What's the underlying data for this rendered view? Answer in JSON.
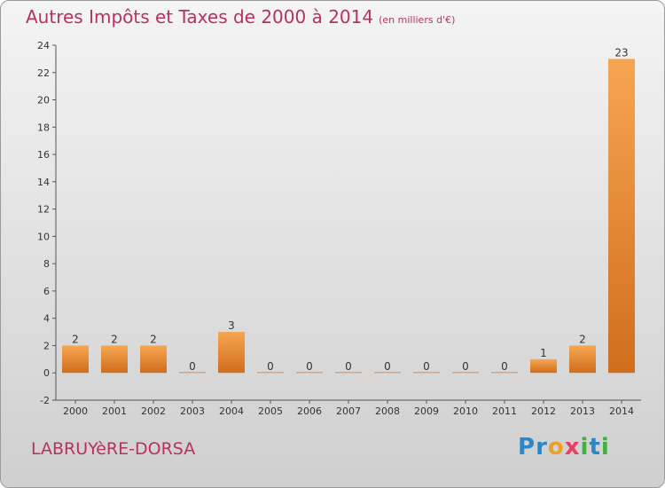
{
  "title": "Autres Impôts et Taxes de 2000 à 2014",
  "unit": "(en milliers d'€)",
  "commune": "LABRUYèRE-DORSA",
  "logo": {
    "letters": [
      {
        "ch": "P",
        "color": "#2e86c8"
      },
      {
        "ch": "r",
        "color": "#2e86c8"
      },
      {
        "ch": "o",
        "color": "#f0a020"
      },
      {
        "ch": "x",
        "color": "#e84060"
      },
      {
        "ch": "i",
        "color": "#40b040"
      },
      {
        "ch": "t",
        "color": "#2e86c8"
      },
      {
        "ch": "i",
        "color": "#40b040"
      }
    ]
  },
  "chart_data": {
    "type": "bar",
    "categories": [
      "2000",
      "2001",
      "2002",
      "2003",
      "2004",
      "2005",
      "2006",
      "2007",
      "2008",
      "2009",
      "2010",
      "2011",
      "2012",
      "2013",
      "2014"
    ],
    "values": [
      2,
      2,
      2,
      0,
      3,
      0,
      0,
      0,
      0,
      0,
      0,
      0,
      1,
      2,
      23
    ],
    "data_labels": [
      "2",
      "2",
      "2",
      "0",
      "3",
      "0",
      "0",
      "0",
      "0",
      "0",
      "0",
      "0",
      "1",
      "2",
      "23"
    ],
    "ylim": [
      -2,
      24
    ],
    "yticks": [
      -2,
      0,
      2,
      4,
      6,
      8,
      10,
      12,
      14,
      16,
      18,
      20,
      22,
      24
    ],
    "bar_color_top": "#f7a552",
    "bar_color_bottom": "#d06e1c"
  }
}
